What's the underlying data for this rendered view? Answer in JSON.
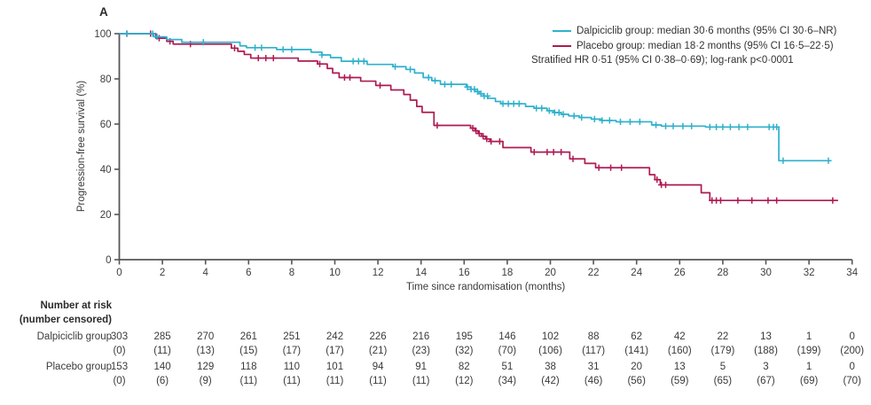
{
  "panel_label": "A",
  "legend": {
    "dalpiciclib_label": "Dalpiciclib group: median 30·6 months (95% CI 30·6–NR)",
    "placebo_label": "Placebo group: median 18·2 months (95% CI 16·5–22·5)",
    "stratified_label": "Stratified HR 0·51 (95% CI 0·38–0·69); log-rank p<0·0001",
    "position": "top-right"
  },
  "chart_data": {
    "type": "line",
    "subtype": "kaplan-meier-step",
    "title": "",
    "xlabel": "Time since randomisation (months)",
    "ylabel": "Progression-free survival (%)",
    "xlim": [
      0,
      34
    ],
    "ylim": [
      0,
      100
    ],
    "xticks": [
      0,
      2,
      4,
      6,
      8,
      10,
      12,
      14,
      16,
      18,
      20,
      22,
      24,
      26,
      28,
      30,
      32,
      34
    ],
    "yticks": [
      0,
      20,
      40,
      60,
      80,
      100
    ],
    "grid": false,
    "legend_position": "top-right",
    "axis_color": "#55565A",
    "tick_text_color": "#3d3d3d",
    "series": [
      {
        "name": "Dalpiciclib group",
        "color": "#2FB1CC",
        "median_months": "30·6",
        "ci_95": "30·6–NR",
        "steps": [
          [
            0,
            100
          ],
          [
            1.6,
            98.6
          ],
          [
            2.2,
            97.4
          ],
          [
            2.9,
            96.2
          ],
          [
            5.6,
            94.6
          ],
          [
            5.9,
            93.8
          ],
          [
            7.3,
            93.0
          ],
          [
            8.9,
            91.8
          ],
          [
            9.4,
            90.6
          ],
          [
            9.8,
            89.4
          ],
          [
            10.3,
            87.8
          ],
          [
            11.5,
            86.4
          ],
          [
            12.7,
            85.4
          ],
          [
            13.3,
            84.2
          ],
          [
            13.7,
            82.6
          ],
          [
            14.1,
            80.6
          ],
          [
            14.5,
            79.2
          ],
          [
            14.9,
            77.6
          ],
          [
            16.1,
            76.4
          ],
          [
            16.3,
            75.4
          ],
          [
            16.5,
            74.4
          ],
          [
            16.7,
            73.4
          ],
          [
            16.9,
            72.4
          ],
          [
            17.1,
            71.4
          ],
          [
            17.45,
            70.0
          ],
          [
            17.7,
            69.0
          ],
          [
            18.85,
            67.8
          ],
          [
            19.25,
            67.0
          ],
          [
            19.85,
            65.9
          ],
          [
            20.15,
            65.1
          ],
          [
            20.5,
            64.3
          ],
          [
            20.85,
            63.6
          ],
          [
            21.35,
            62.9
          ],
          [
            21.9,
            62.2
          ],
          [
            22.35,
            61.6
          ],
          [
            23.05,
            61.0
          ],
          [
            24.7,
            59.6
          ],
          [
            25.15,
            59.1
          ],
          [
            27.2,
            58.7
          ],
          [
            30.6,
            43.8
          ]
        ],
        "end_month": 33.0,
        "censor_months": [
          0.35,
          1.55,
          1.75,
          3.9,
          6.3,
          6.6,
          7.6,
          8.0,
          9.4,
          10.85,
          11.1,
          11.35,
          12.8,
          13.5,
          14.35,
          14.65,
          15.1,
          15.4,
          16.15,
          16.32,
          16.48,
          16.62,
          16.78,
          16.93,
          17.08,
          17.8,
          18.05,
          18.3,
          18.55,
          19.35,
          19.6,
          19.95,
          20.2,
          20.4,
          20.6,
          21.1,
          21.45,
          22.05,
          22.4,
          22.75,
          23.25,
          23.7,
          24.15,
          24.9,
          25.35,
          25.7,
          26.15,
          26.55,
          27.4,
          27.7,
          28.0,
          28.35,
          28.75,
          29.15,
          30.15,
          30.35,
          30.5,
          30.8,
          32.9
        ]
      },
      {
        "name": "Placebo group",
        "color": "#AE1A52",
        "median_months": "18·2",
        "ci_95": "16·5–22·5",
        "steps": [
          [
            0,
            100
          ],
          [
            1.7,
            98.0
          ],
          [
            2.2,
            96.6
          ],
          [
            2.5,
            95.4
          ],
          [
            5.2,
            93.6
          ],
          [
            5.5,
            92.2
          ],
          [
            5.8,
            90.8
          ],
          [
            6.1,
            89.2
          ],
          [
            8.3,
            87.9
          ],
          [
            9.2,
            86.6
          ],
          [
            9.65,
            84.6
          ],
          [
            9.9,
            82.6
          ],
          [
            10.2,
            80.6
          ],
          [
            11.2,
            79.0
          ],
          [
            11.9,
            77.1
          ],
          [
            12.6,
            75.1
          ],
          [
            13.2,
            73.1
          ],
          [
            13.5,
            70.6
          ],
          [
            13.8,
            67.8
          ],
          [
            14.05,
            65.2
          ],
          [
            14.6,
            59.4
          ],
          [
            16.3,
            58.2
          ],
          [
            16.5,
            57.0
          ],
          [
            16.65,
            55.8
          ],
          [
            16.8,
            54.6
          ],
          [
            17.0,
            53.4
          ],
          [
            17.2,
            52.3
          ],
          [
            17.8,
            49.6
          ],
          [
            19.1,
            47.6
          ],
          [
            20.9,
            44.6
          ],
          [
            21.6,
            42.6
          ],
          [
            22.1,
            40.7
          ],
          [
            24.6,
            37.6
          ],
          [
            24.85,
            35.4
          ],
          [
            25.1,
            33.1
          ],
          [
            27.0,
            29.6
          ],
          [
            27.4,
            26.2
          ]
        ],
        "end_month": 33.35,
        "censor_months": [
          0.35,
          1.45,
          1.85,
          2.35,
          3.3,
          5.35,
          6.45,
          6.8,
          7.15,
          9.3,
          10.45,
          10.7,
          12.1,
          14.75,
          16.4,
          16.55,
          16.7,
          16.88,
          17.05,
          17.25,
          17.65,
          19.25,
          19.85,
          20.15,
          20.5,
          21.05,
          22.25,
          22.8,
          23.3,
          24.95,
          25.15,
          25.35,
          27.5,
          27.7,
          27.9,
          28.7,
          29.35,
          30.1,
          30.5,
          33.1
        ]
      }
    ]
  },
  "risk_table": {
    "header_line1": "Number at risk",
    "header_line2": "(number censored)",
    "rows": [
      {
        "label": "Dalpiciclib group",
        "at_risk": [
          "303",
          "285",
          "270",
          "261",
          "251",
          "242",
          "226",
          "216",
          "195",
          "146",
          "102",
          "88",
          "62",
          "42",
          "22",
          "13",
          "1",
          "0"
        ],
        "censored": [
          "(0)",
          "(11)",
          "(13)",
          "(15)",
          "(17)",
          "(17)",
          "(21)",
          "(23)",
          "(32)",
          "(70)",
          "(106)",
          "(117)",
          "(141)",
          "(160)",
          "(179)",
          "(188)",
          "(199)",
          "(200)"
        ]
      },
      {
        "label": "Placebo group",
        "at_risk": [
          "153",
          "140",
          "129",
          "118",
          "110",
          "101",
          "94",
          "91",
          "82",
          "51",
          "38",
          "31",
          "20",
          "13",
          "5",
          "3",
          "1",
          "0"
        ],
        "censored": [
          "(0)",
          "(6)",
          "(9)",
          "(11)",
          "(11)",
          "(11)",
          "(11)",
          "(11)",
          "(12)",
          "(34)",
          "(42)",
          "(46)",
          "(56)",
          "(59)",
          "(65)",
          "(67)",
          "(69)",
          "(70)"
        ]
      }
    ]
  }
}
